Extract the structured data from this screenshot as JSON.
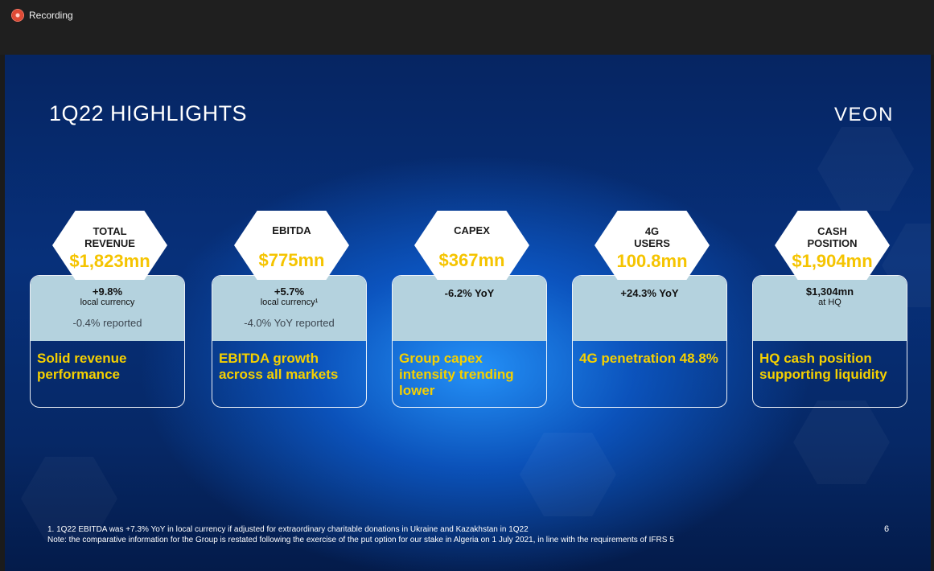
{
  "titlebar": {
    "label": "Recording",
    "icon": "record-icon",
    "icon_color": "#e04a35"
  },
  "slide": {
    "title": "1Q22 HIGHLIGHTS",
    "logo": "VEON",
    "page_number": "6",
    "colors": {
      "background": "#0a46b4",
      "accent_yellow": "#f5c400",
      "card_band": "#b4d2de"
    },
    "cards": [
      {
        "label": "TOTAL\nREVENUE",
        "value": "$1,823mn",
        "sub_main": "+9.8%",
        "sub_note": "local currency",
        "reported": "-0.4% reported",
        "caption": "Solid revenue performance"
      },
      {
        "label": "EBITDA",
        "value": "$775mn",
        "sub_main": "+5.7%",
        "sub_note": "local currency¹",
        "reported": "-4.0% YoY reported",
        "caption": "EBITDA growth across all markets"
      },
      {
        "label": "CAPEX",
        "value": "$367mn",
        "sub_main": "-6.2% YoY",
        "sub_note": "",
        "reported": "",
        "caption": "Group capex intensity trending lower"
      },
      {
        "label": "4G\nUSERS",
        "value": "100.8mn",
        "sub_main": "+24.3% YoY",
        "sub_note": "",
        "reported": "",
        "caption": "4G penetration 48.8%"
      },
      {
        "label": "CASH\nPOSITION",
        "value": "$1,904mn",
        "sub_main": "$1,304mn",
        "sub_note": "at HQ",
        "reported": "",
        "caption": "HQ cash position supporting liquidity"
      }
    ],
    "footnotes": [
      "1.   1Q22 EBITDA was +7.3% YoY in local currency if adjusted for extraordinary charitable donations in Ukraine and Kazakhstan in 1Q22",
      "Note: the comparative information for the Group is restated following the exercise of the put option for our stake in Algeria on 1 July 2021, in line with the requirements of IFRS 5"
    ]
  }
}
